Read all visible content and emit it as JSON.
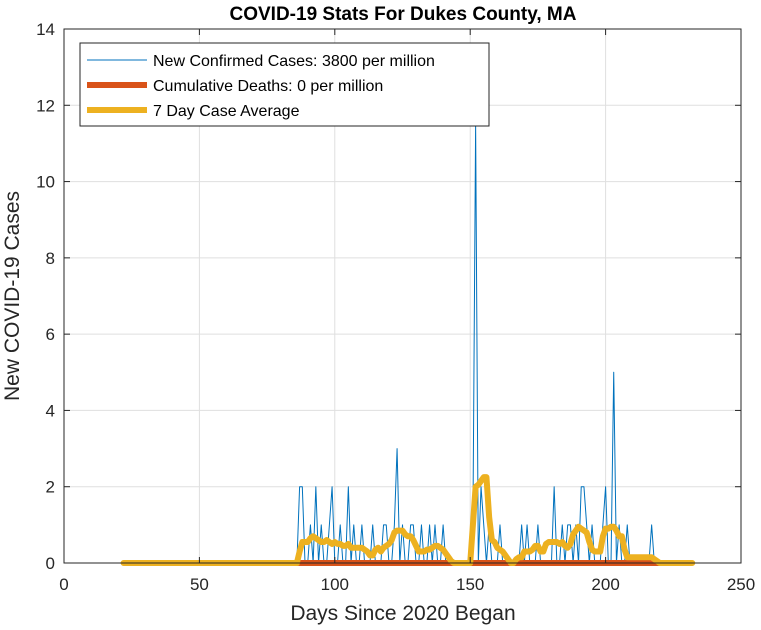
{
  "chart_data": {
    "type": "line",
    "title": "COVID-19 Stats For Dukes County, MA",
    "xlabel": "Days Since 2020 Began",
    "ylabel": "New COVID-19 Cases",
    "xlim": [
      0,
      250
    ],
    "ylim": [
      0,
      14
    ],
    "xticks": [
      0,
      50,
      100,
      150,
      200,
      250
    ],
    "yticks": [
      0,
      2,
      4,
      6,
      8,
      10,
      12,
      14
    ],
    "grid": true,
    "legend_position": "top-left",
    "series": [
      {
        "name": "New Confirmed Cases: 3800 per million",
        "color": "#0072BD",
        "points": [
          [
            22,
            0
          ],
          [
            86,
            0
          ],
          [
            87,
            2
          ],
          [
            88,
            2
          ],
          [
            89,
            0
          ],
          [
            90,
            0
          ],
          [
            91,
            1
          ],
          [
            92,
            0
          ],
          [
            93,
            2
          ],
          [
            94,
            0
          ],
          [
            95,
            1
          ],
          [
            96,
            0
          ],
          [
            97,
            0
          ],
          [
            98,
            1
          ],
          [
            99,
            2
          ],
          [
            100,
            0
          ],
          [
            101,
            0
          ],
          [
            102,
            1
          ],
          [
            103,
            0
          ],
          [
            104,
            0
          ],
          [
            105,
            2
          ],
          [
            106,
            0
          ],
          [
            107,
            1
          ],
          [
            108,
            0
          ],
          [
            109,
            0
          ],
          [
            110,
            1
          ],
          [
            111,
            0
          ],
          [
            112,
            0
          ],
          [
            113,
            0
          ],
          [
            114,
            1
          ],
          [
            115,
            0
          ],
          [
            116,
            0
          ],
          [
            117,
            0
          ],
          [
            118,
            1
          ],
          [
            119,
            1
          ],
          [
            120,
            0
          ],
          [
            121,
            0
          ],
          [
            122,
            1
          ],
          [
            123,
            3
          ],
          [
            124,
            0
          ],
          [
            125,
            1
          ],
          [
            126,
            0
          ],
          [
            127,
            0
          ],
          [
            128,
            1
          ],
          [
            129,
            1
          ],
          [
            130,
            0
          ],
          [
            131,
            0
          ],
          [
            132,
            1
          ],
          [
            133,
            0
          ],
          [
            134,
            0
          ],
          [
            135,
            1
          ],
          [
            136,
            0
          ],
          [
            137,
            1
          ],
          [
            138,
            0
          ],
          [
            139,
            0
          ],
          [
            140,
            1
          ],
          [
            141,
            0
          ],
          [
            142,
            0
          ],
          [
            143,
            0
          ],
          [
            144,
            0
          ],
          [
            145,
            0
          ],
          [
            146,
            0
          ],
          [
            147,
            0
          ],
          [
            148,
            0
          ],
          [
            149,
            0
          ],
          [
            150,
            0
          ],
          [
            151,
            1
          ],
          [
            152,
            11.5
          ],
          [
            153,
            0
          ],
          [
            154,
            2
          ],
          [
            155,
            1
          ],
          [
            156,
            0
          ],
          [
            157,
            1
          ],
          [
            158,
            0
          ],
          [
            159,
            0
          ],
          [
            160,
            0
          ],
          [
            161,
            1
          ],
          [
            162,
            0
          ],
          [
            163,
            0
          ],
          [
            164,
            0
          ],
          [
            165,
            0
          ],
          [
            166,
            0
          ],
          [
            167,
            0
          ],
          [
            168,
            0
          ],
          [
            169,
            1
          ],
          [
            170,
            0
          ],
          [
            171,
            1
          ],
          [
            172,
            0
          ],
          [
            173,
            0
          ],
          [
            174,
            0
          ],
          [
            175,
            1
          ],
          [
            176,
            0
          ],
          [
            177,
            0
          ],
          [
            178,
            0
          ],
          [
            179,
            0
          ],
          [
            180,
            0
          ],
          [
            181,
            2
          ],
          [
            182,
            0
          ],
          [
            183,
            0
          ],
          [
            184,
            1
          ],
          [
            185,
            0
          ],
          [
            186,
            1
          ],
          [
            187,
            1
          ],
          [
            188,
            0
          ],
          [
            189,
            1
          ],
          [
            190,
            0
          ],
          [
            191,
            2
          ],
          [
            192,
            2
          ],
          [
            193,
            1
          ],
          [
            194,
            0
          ],
          [
            195,
            1
          ],
          [
            196,
            0
          ],
          [
            197,
            0
          ],
          [
            198,
            0
          ],
          [
            199,
            1
          ],
          [
            200,
            2
          ],
          [
            201,
            0
          ],
          [
            202,
            0
          ],
          [
            203,
            5
          ],
          [
            204,
            0
          ],
          [
            205,
            1
          ],
          [
            206,
            0
          ],
          [
            207,
            0
          ],
          [
            208,
            1
          ],
          [
            209,
            0
          ],
          [
            210,
            0
          ],
          [
            211,
            0
          ],
          [
            212,
            0
          ],
          [
            213,
            0
          ],
          [
            214,
            0
          ],
          [
            215,
            0
          ],
          [
            216,
            0
          ],
          [
            217,
            1
          ],
          [
            218,
            0
          ],
          [
            219,
            0
          ],
          [
            220,
            0
          ],
          [
            221,
            0
          ],
          [
            232,
            0
          ]
        ]
      },
      {
        "name": "Cumulative Deaths: 0 per million",
        "color": "#D95319",
        "points": [
          [
            86,
            0
          ],
          [
            224,
            0
          ]
        ]
      },
      {
        "name": "7 Day Case Average",
        "color": "#EDB120",
        "points": [
          [
            22,
            0
          ],
          [
            86,
            0
          ],
          [
            87,
            0.3
          ],
          [
            88,
            0.55
          ],
          [
            89,
            0.55
          ],
          [
            90,
            0.55
          ],
          [
            91,
            0.65
          ],
          [
            92,
            0.7
          ],
          [
            93,
            0.65
          ],
          [
            94,
            0.6
          ],
          [
            95,
            0.55
          ],
          [
            96,
            0.55
          ],
          [
            97,
            0.6
          ],
          [
            98,
            0.55
          ],
          [
            99,
            0.5
          ],
          [
            100,
            0.55
          ],
          [
            101,
            0.5
          ],
          [
            102,
            0.5
          ],
          [
            103,
            0.45
          ],
          [
            104,
            0.45
          ],
          [
            105,
            0.5
          ],
          [
            106,
            0.4
          ],
          [
            107,
            0.4
          ],
          [
            108,
            0.4
          ],
          [
            109,
            0.4
          ],
          [
            110,
            0.4
          ],
          [
            111,
            0.35
          ],
          [
            112,
            0.3
          ],
          [
            113,
            0.2
          ],
          [
            114,
            0.2
          ],
          [
            115,
            0.35
          ],
          [
            116,
            0.4
          ],
          [
            117,
            0.3
          ],
          [
            118,
            0.4
          ],
          [
            119,
            0.45
          ],
          [
            120,
            0.5
          ],
          [
            121,
            0.6
          ],
          [
            122,
            0.8
          ],
          [
            123,
            0.85
          ],
          [
            124,
            0.85
          ],
          [
            125,
            0.85
          ],
          [
            126,
            0.75
          ],
          [
            127,
            0.7
          ],
          [
            128,
            0.7
          ],
          [
            129,
            0.6
          ],
          [
            130,
            0.45
          ],
          [
            131,
            0.3
          ],
          [
            132,
            0.3
          ],
          [
            133,
            0.3
          ],
          [
            134,
            0.35
          ],
          [
            135,
            0.35
          ],
          [
            136,
            0.4
          ],
          [
            137,
            0.45
          ],
          [
            138,
            0.45
          ],
          [
            139,
            0.4
          ],
          [
            140,
            0.35
          ],
          [
            141,
            0.25
          ],
          [
            142,
            0.15
          ],
          [
            143,
            0.05
          ],
          [
            144,
            0
          ],
          [
            150,
            0
          ],
          [
            151,
            1
          ],
          [
            152,
            2
          ],
          [
            153,
            2.05
          ],
          [
            154,
            2.15
          ],
          [
            155,
            2.25
          ],
          [
            156,
            2.25
          ],
          [
            157,
            1.2
          ],
          [
            158,
            0.6
          ],
          [
            159,
            0.55
          ],
          [
            160,
            0.4
          ],
          [
            161,
            0.35
          ],
          [
            162,
            0.3
          ],
          [
            163,
            0.2
          ],
          [
            164,
            0.1
          ],
          [
            165,
            0
          ],
          [
            166,
            0
          ],
          [
            167,
            0.1
          ],
          [
            168,
            0.15
          ],
          [
            169,
            0.15
          ],
          [
            170,
            0.3
          ],
          [
            171,
            0.3
          ],
          [
            172,
            0.3
          ],
          [
            173,
            0.35
          ],
          [
            174,
            0.45
          ],
          [
            175,
            0.45
          ],
          [
            176,
            0.3
          ],
          [
            177,
            0.3
          ],
          [
            178,
            0.5
          ],
          [
            179,
            0.55
          ],
          [
            180,
            0.55
          ],
          [
            181,
            0.55
          ],
          [
            182,
            0.55
          ],
          [
            183,
            0.5
          ],
          [
            184,
            0.55
          ],
          [
            185,
            0.45
          ],
          [
            186,
            0.4
          ],
          [
            187,
            0.5
          ],
          [
            188,
            0.75
          ],
          [
            189,
            0.85
          ],
          [
            190,
            0.95
          ],
          [
            191,
            0.9
          ],
          [
            192,
            0.85
          ],
          [
            193,
            0.8
          ],
          [
            194,
            0.55
          ],
          [
            195,
            0.35
          ],
          [
            196,
            0.3
          ],
          [
            197,
            0.3
          ],
          [
            198,
            0.3
          ],
          [
            199,
            0.7
          ],
          [
            200,
            0.9
          ],
          [
            201,
            0.9
          ],
          [
            202,
            0.95
          ],
          [
            203,
            0.95
          ],
          [
            204,
            0.85
          ],
          [
            205,
            0.7
          ],
          [
            206,
            0.7
          ],
          [
            207,
            0.35
          ],
          [
            208,
            0.15
          ],
          [
            209,
            0.15
          ],
          [
            210,
            0.15
          ],
          [
            215,
            0.15
          ],
          [
            217,
            0.15
          ],
          [
            218,
            0.1
          ],
          [
            219,
            0.05
          ],
          [
            220,
            0
          ],
          [
            232,
            0
          ]
        ]
      }
    ]
  }
}
